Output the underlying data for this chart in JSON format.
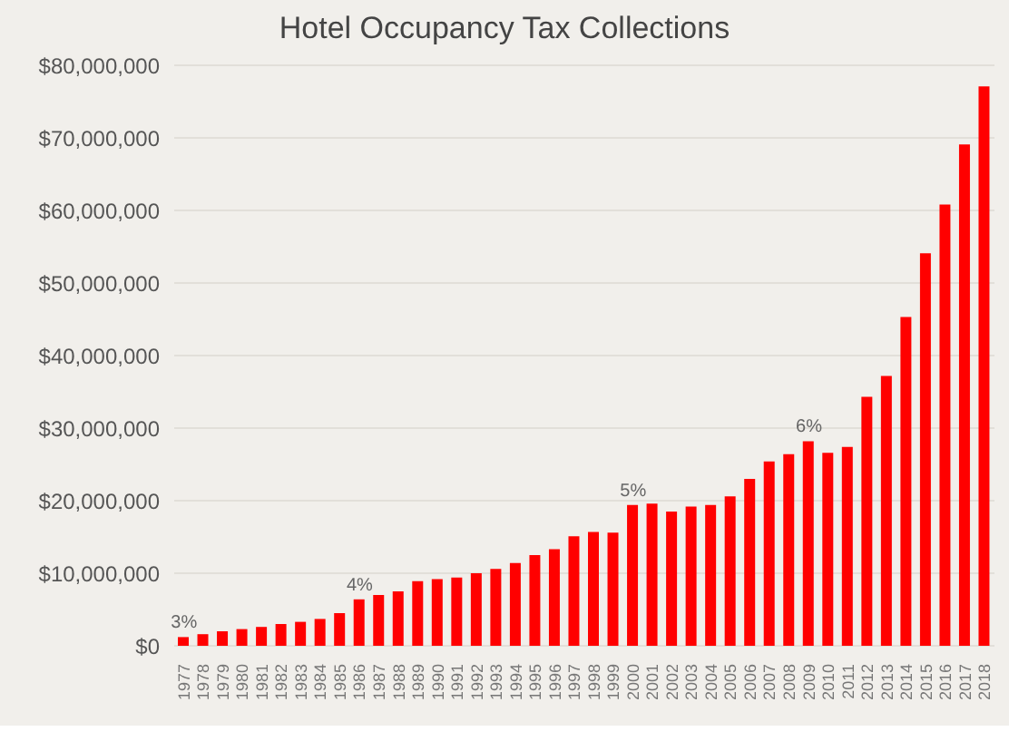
{
  "chart_data": {
    "type": "bar",
    "title": "Hotel Occupancy Tax Collections",
    "categories": [
      "1977",
      "1978",
      "1979",
      "1980",
      "1981",
      "1982",
      "1983",
      "1984",
      "1985",
      "1986",
      "1987",
      "1988",
      "1989",
      "1990",
      "1991",
      "1992",
      "1993",
      "1994",
      "1995",
      "1996",
      "1997",
      "1998",
      "1999",
      "2000",
      "2001",
      "2002",
      "2003",
      "2004",
      "2005",
      "2006",
      "2007",
      "2008",
      "2009",
      "2010",
      "2011",
      "2012",
      "2013",
      "2014",
      "2015",
      "2016",
      "2017",
      "2018"
    ],
    "values": [
      1200000,
      1600000,
      2000000,
      2300000,
      2600000,
      3000000,
      3300000,
      3700000,
      4500000,
      6400000,
      7000000,
      7500000,
      8900000,
      9200000,
      9400000,
      10000000,
      10600000,
      11400000,
      12500000,
      13300000,
      15100000,
      15700000,
      15600000,
      19400000,
      19600000,
      18500000,
      19200000,
      19400000,
      20600000,
      23000000,
      25400000,
      26400000,
      28200000,
      26600000,
      27400000,
      34300000,
      37200000,
      45300000,
      54100000,
      60800000,
      69100000,
      77100000
    ],
    "color": "#ff0000",
    "ylim": [
      0,
      80000000
    ],
    "yticks": [
      {
        "value": 0,
        "label": "$0"
      },
      {
        "value": 10000000,
        "label": "$10,000,000"
      },
      {
        "value": 20000000,
        "label": "$20,000,000"
      },
      {
        "value": 30000000,
        "label": "$30,000,000"
      },
      {
        "value": 40000000,
        "label": "$40,000,000"
      },
      {
        "value": 50000000,
        "label": "$50,000,000"
      },
      {
        "value": 60000000,
        "label": "$60,000,000"
      },
      {
        "value": 70000000,
        "label": "$70,000,000"
      },
      {
        "value": 80000000,
        "label": "$80,000,000"
      }
    ],
    "grid": "y",
    "annotations": [
      {
        "text": "3%",
        "x": "1977",
        "y": 1200000
      },
      {
        "text": "4%",
        "x": "1986",
        "y": 6400000
      },
      {
        "text": "5%",
        "x": "2000",
        "y": 19400000
      },
      {
        "text": "6%",
        "x": "2009",
        "y": 28200000
      }
    ]
  }
}
